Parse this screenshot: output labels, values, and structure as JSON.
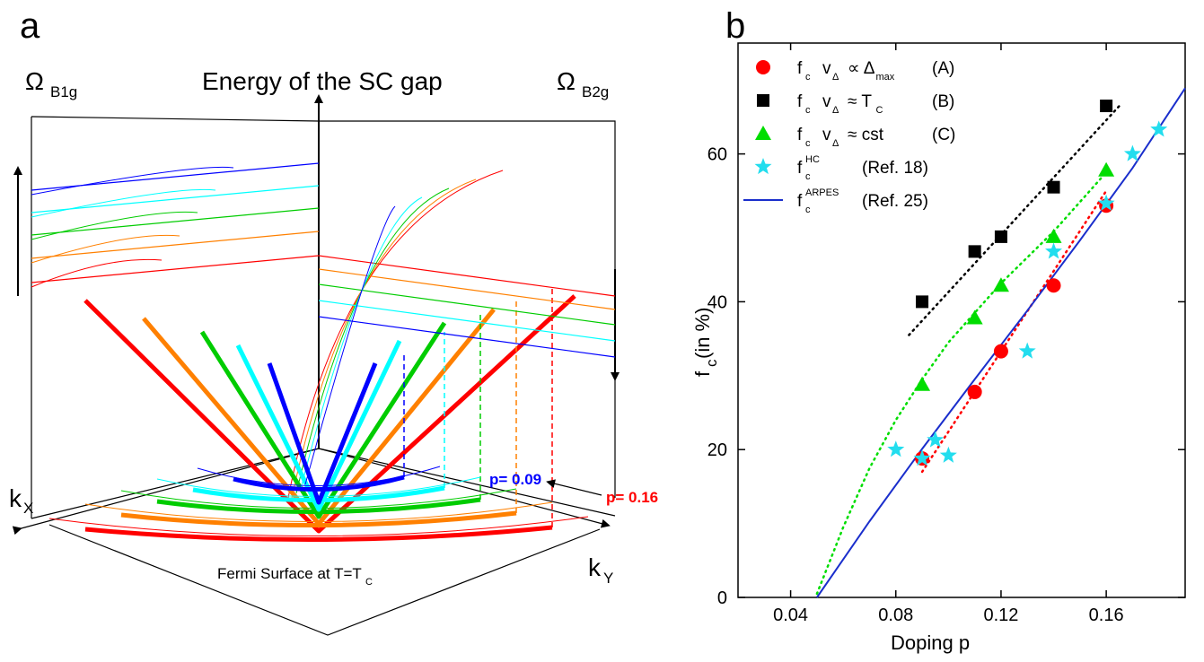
{
  "panel_a": {
    "label": "a",
    "axis_title": "Energy of the SC gap",
    "omega_b1g": "Ω",
    "omega_b1g_sub": "B1g",
    "omega_b2g": "Ω",
    "omega_b2g_sub": "B2g",
    "kx": "k",
    "kx_sub": "X",
    "ky": "k",
    "ky_sub": "Y",
    "fermi_label": "Fermi Surface at T=T",
    "fermi_sub": "C",
    "p_low": "p= 0.09",
    "p_high": "p= 0.16",
    "colors": [
      "#ff0000",
      "#ff8000",
      "#00cc00",
      "#00ffff",
      "#0000ff"
    ]
  },
  "chart_data": {
    "type": "scatter",
    "panel_label": "b",
    "xlabel": "Doping p",
    "ylabel_main": "f",
    "ylabel_sub": "c",
    "ylabel_rest": " (in %)",
    "xlim": [
      0.02,
      0.19
    ],
    "ylim": [
      0,
      75
    ],
    "xticks": [
      0.04,
      0.08,
      0.12,
      0.16
    ],
    "xtick_labels": [
      "0.04",
      "0.08",
      "0.12",
      "0.16"
    ],
    "yticks": [
      0,
      20,
      40,
      60
    ],
    "ytick_labels": [
      "0",
      "20",
      "40",
      "60"
    ],
    "legend_position": "top-left",
    "series": [
      {
        "key": "A",
        "marker": "circle",
        "color": "#ff0000",
        "legend_main": "f",
        "legend_sub": "c",
        "legend_expr": "v",
        "legend_expr_sub": "Δ",
        "legend_rel": "∝ Δ",
        "legend_rel_sub": "max",
        "legend_tag": "(A)",
        "x": [
          0.09,
          0.11,
          0.12,
          0.14,
          0.16
        ],
        "y": [
          18.8,
          27.8,
          33.3,
          42.2,
          53.0
        ],
        "fit_x": [
          0.09,
          0.16
        ],
        "fit_y": [
          17.0,
          55.0
        ]
      },
      {
        "key": "B",
        "marker": "square",
        "color": "#000000",
        "legend_main": "f",
        "legend_sub": "c",
        "legend_expr": "v",
        "legend_expr_sub": "Δ",
        "legend_rel": "≈ T",
        "legend_rel_sub": "C",
        "legend_tag": "(B)",
        "x": [
          0.09,
          0.11,
          0.12,
          0.14,
          0.16
        ],
        "y": [
          40.0,
          46.8,
          48.8,
          55.5,
          66.5
        ],
        "fit_x": [
          0.085,
          0.165
        ],
        "fit_y": [
          35.5,
          66.5
        ]
      },
      {
        "key": "C",
        "marker": "triangle",
        "color": "#00dd00",
        "legend_main": "f",
        "legend_sub": "c",
        "legend_expr": "v",
        "legend_expr_sub": "Δ",
        "legend_rel": "≈ cst",
        "legend_rel_sub": "",
        "legend_tag": "(C)",
        "x": [
          0.09,
          0.11,
          0.12,
          0.14,
          0.16
        ],
        "y": [
          28.8,
          37.8,
          42.2,
          48.8,
          57.8
        ],
        "fit_x": [
          0.05,
          0.06,
          0.07,
          0.08,
          0.09,
          0.1,
          0.11,
          0.12,
          0.13,
          0.14,
          0.15,
          0.16
        ],
        "fit_y": [
          0.5,
          9.5,
          17.5,
          24.0,
          29.5,
          34.5,
          38.5,
          42.5,
          46.0,
          49.5,
          53.5,
          57.5
        ]
      },
      {
        "key": "HC",
        "marker": "star",
        "color": "#22ddee",
        "legend_main": "f",
        "legend_sub": "c",
        "legend_sup": "HC",
        "legend_tag": "(Ref. 18)",
        "x": [
          0.08,
          0.09,
          0.095,
          0.1,
          0.13,
          0.14,
          0.16,
          0.17,
          0.18
        ],
        "y": [
          20.0,
          18.8,
          21.3,
          19.2,
          33.3,
          46.8,
          53.3,
          60.0,
          63.3
        ]
      },
      {
        "key": "ARPES",
        "marker": "line",
        "color": "#1a2ecc",
        "legend_main": "f",
        "legend_sub": "c",
        "legend_sup": "ARPES",
        "legend_tag": "(Ref. 25)",
        "x": [
          0.05,
          0.07,
          0.09,
          0.11,
          0.13,
          0.15,
          0.17,
          0.19
        ],
        "y": [
          0.0,
          10.3,
          20.1,
          29.5,
          38.8,
          48.3,
          58.1,
          68.9
        ]
      }
    ]
  }
}
